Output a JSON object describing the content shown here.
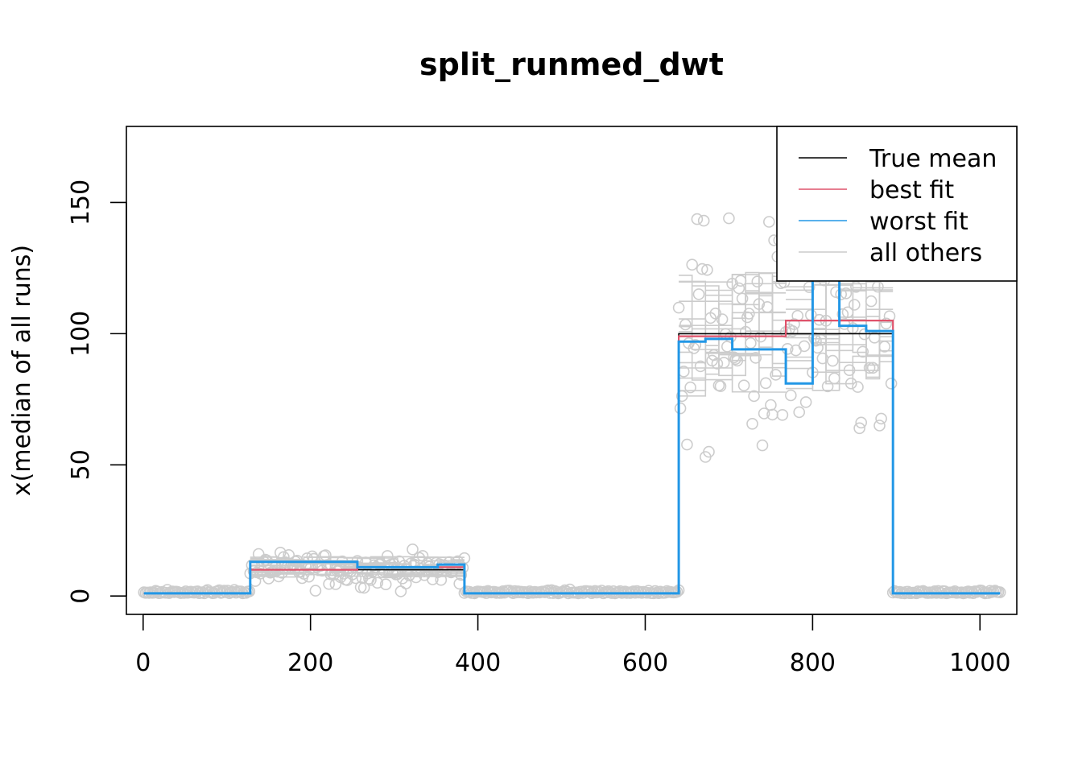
{
  "chart_data": {
    "type": "line",
    "title": "split_runmed_dwt",
    "xlabel": "",
    "ylabel": "x(median of all runs)",
    "xlim": [
      -20,
      1044
    ],
    "ylim": [
      -7,
      179
    ],
    "x_ticks": [
      0,
      200,
      400,
      600,
      800,
      1000
    ],
    "y_ticks": [
      0,
      50,
      100,
      150
    ],
    "grid": false,
    "legend_position": "top-right",
    "colors": {
      "true_mean": "#000000",
      "best_fit": "#df536b",
      "worst_fit": "#2297e6",
      "all_others": "#cccccc",
      "points": "#cccccc"
    },
    "legend": [
      {
        "label": "True mean",
        "color": "#000000"
      },
      {
        "label": "best fit",
        "color": "#df536b"
      },
      {
        "label": "worst fit",
        "color": "#2297e6"
      },
      {
        "label": "all others",
        "color": "#cccccc"
      }
    ],
    "true_mean_segments": [
      {
        "x0": 1,
        "x1": 128,
        "y": 1
      },
      {
        "x0": 128,
        "x1": 384,
        "y": 10
      },
      {
        "x0": 384,
        "x1": 640,
        "y": 1
      },
      {
        "x0": 640,
        "x1": 896,
        "y": 100
      },
      {
        "x0": 896,
        "x1": 1024,
        "y": 1
      }
    ],
    "series": [
      {
        "name": "best fit",
        "steps": [
          {
            "x0": 1,
            "x1": 128,
            "y": 1
          },
          {
            "x0": 128,
            "x1": 256,
            "y": 10
          },
          {
            "x0": 256,
            "x1": 384,
            "y": 11
          },
          {
            "x0": 384,
            "x1": 640,
            "y": 1
          },
          {
            "x0": 640,
            "x1": 768,
            "y": 99
          },
          {
            "x0": 768,
            "x1": 896,
            "y": 105
          },
          {
            "x0": 896,
            "x1": 1024,
            "y": 1
          }
        ]
      },
      {
        "name": "worst fit",
        "steps": [
          {
            "x0": 1,
            "x1": 128,
            "y": 1
          },
          {
            "x0": 128,
            "x1": 192,
            "y": 13
          },
          {
            "x0": 192,
            "x1": 256,
            "y": 13
          },
          {
            "x0": 256,
            "x1": 352,
            "y": 11
          },
          {
            "x0": 352,
            "x1": 384,
            "y": 12
          },
          {
            "x0": 384,
            "x1": 640,
            "y": 1
          },
          {
            "x0": 640,
            "x1": 672,
            "y": 97
          },
          {
            "x0": 672,
            "x1": 704,
            "y": 98
          },
          {
            "x0": 704,
            "x1": 768,
            "y": 94
          },
          {
            "x0": 768,
            "x1": 800,
            "y": 81
          },
          {
            "x0": 800,
            "x1": 832,
            "y": 125
          },
          {
            "x0": 832,
            "x1": 864,
            "y": 103
          },
          {
            "x0": 864,
            "x1": 896,
            "y": 101
          },
          {
            "x0": 896,
            "x1": 1024,
            "y": 1
          }
        ]
      }
    ],
    "all_others_block_range": [
      {
        "x0": 640,
        "x1": 768,
        "ymin": 76,
        "ymax": 125
      },
      {
        "x0": 768,
        "x1": 896,
        "ymin": 77,
        "ymax": 125
      },
      {
        "x0": 128,
        "x1": 384,
        "ymin": 7,
        "ymax": 15
      }
    ],
    "points_segments": [
      {
        "x0": 1,
        "x1": 128,
        "center": 1,
        "spread": 1.2
      },
      {
        "x0": 128,
        "x1": 384,
        "center": 10,
        "spread": 3.2
      },
      {
        "x0": 384,
        "x1": 640,
        "center": 1,
        "spread": 1.2
      },
      {
        "x0": 640,
        "x1": 896,
        "center": 97,
        "spread": 22
      },
      {
        "x0": 896,
        "x1": 1024,
        "center": 1,
        "spread": 1.2
      }
    ]
  }
}
